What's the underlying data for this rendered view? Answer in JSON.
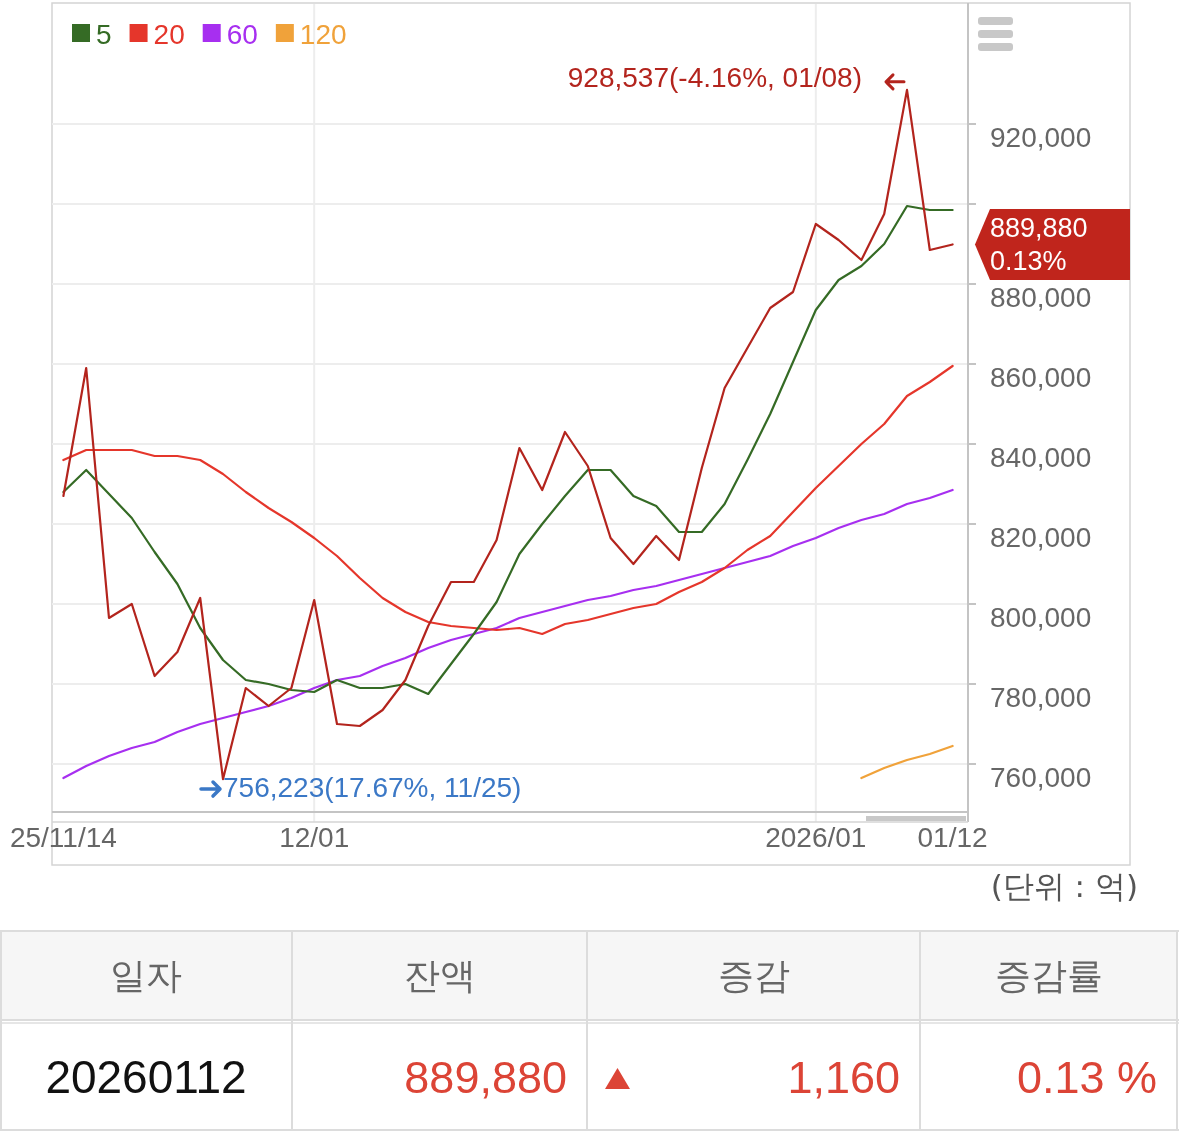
{
  "chart_data": [
    {
      "type": "line",
      "categories": [
        "25/11/14",
        null,
        null,
        null,
        null,
        null,
        null,
        null,
        null,
        null,
        null,
        "12/01",
        null,
        null,
        null,
        null,
        null,
        null,
        null,
        null,
        null,
        null,
        null,
        null,
        null,
        null,
        null,
        null,
        null,
        null,
        null,
        null,
        null,
        "2026/01",
        null,
        null,
        null,
        null,
        null,
        "01/12"
      ],
      "series": [
        {
          "color": "#b3241d",
          "values": [
            827000,
            859000,
            796500,
            800000,
            782000,
            788000,
            801500,
            756223,
            779000,
            774500,
            779000,
            801000,
            770000,
            769500,
            773500,
            781000,
            794500,
            805500,
            805500,
            816000,
            839000,
            828500,
            843000,
            834500,
            816500,
            810000,
            817000,
            811000,
            834000,
            854000,
            864000,
            874000,
            878000,
            895000,
            891000,
            886000,
            897500,
            928537,
            888500,
            889880
          ]
        },
        {
          "name": "5",
          "color": "#356b25",
          "values": [
            828000,
            833500,
            827500,
            821500,
            813000,
            805000,
            794000,
            786000,
            781000,
            780000,
            778500,
            778000,
            781000,
            779000,
            779000,
            780000,
            777500,
            785000,
            792500,
            800500,
            812500,
            820000,
            827000,
            833500,
            833500,
            827000,
            824500,
            818000,
            818000,
            825000,
            836000,
            847500,
            860500,
            873500,
            881000,
            884500,
            890000,
            899500,
            898500,
            898500
          ]
        },
        {
          "name": "20",
          "color": "#e5362b",
          "values": [
            836000,
            838500,
            838500,
            838500,
            837000,
            837000,
            836000,
            832500,
            828000,
            824000,
            820500,
            816500,
            812000,
            806500,
            801500,
            798000,
            795500,
            794500,
            794000,
            793500,
            794000,
            792500,
            795000,
            796000,
            797500,
            799000,
            800000,
            803000,
            805500,
            809000,
            813500,
            817000,
            823000,
            829000,
            834500,
            840000,
            845000,
            852000,
            855500,
            859500
          ]
        },
        {
          "name": "60",
          "color": "#a72ff0",
          "values": [
            756500,
            759500,
            762000,
            764000,
            765500,
            768000,
            770000,
            771500,
            773000,
            774500,
            776500,
            779000,
            781000,
            782000,
            784500,
            786500,
            789000,
            791000,
            792500,
            794000,
            796500,
            798000,
            799500,
            801000,
            802000,
            803500,
            804500,
            806000,
            807500,
            809000,
            810500,
            812000,
            814500,
            816500,
            819000,
            821000,
            822500,
            825000,
            826500,
            828500
          ]
        },
        {
          "name": "120",
          "color": "#f0a23a",
          "values": [
            null,
            null,
            null,
            null,
            null,
            null,
            null,
            null,
            null,
            null,
            null,
            null,
            null,
            null,
            null,
            null,
            null,
            null,
            null,
            null,
            null,
            null,
            null,
            null,
            null,
            null,
            null,
            null,
            null,
            null,
            null,
            null,
            null,
            null,
            null,
            756500,
            759000,
            761000,
            762500,
            764500
          ]
        }
      ],
      "ylim": [
        748000,
        950000
      ],
      "yticks": [
        {
          "value": 760000,
          "label": "760,000"
        },
        {
          "value": 780000,
          "label": "780,000"
        },
        {
          "value": 800000,
          "label": "800,000"
        },
        {
          "value": 820000,
          "label": "820,000"
        },
        {
          "value": 840000,
          "label": "840,000"
        },
        {
          "value": 860000,
          "label": "860,000"
        },
        {
          "value": 880000,
          "label": "880,000"
        },
        {
          "value": 900000,
          "label": null
        },
        {
          "value": 920000,
          "label": "920,000"
        }
      ],
      "grid": true,
      "legend": "top left",
      "annotations": [
        "928,537(-4.16%, 01/08)",
        "756,223(17.67%, 11/25)",
        "889,880",
        "0.13%",
        "(단위 : 억)"
      ]
    },
    {
      "type": "other",
      "categories": [
        "일자",
        "잔액",
        "증감",
        "증감률"
      ],
      "annotations": [
        "20260112",
        "889,880",
        "1,160",
        "0.13 %"
      ]
    }
  ]
}
